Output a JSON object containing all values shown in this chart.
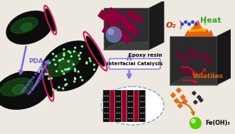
{
  "bg_color": "#ede8e0",
  "halloysite_dark": "#0d0d0d",
  "halloysite_green": "#1a5c1a",
  "halloysite_ring": "#dd1155",
  "pda_arrow": "#7766dd",
  "pda_label": "PDA",
  "fe_label_line1": "Ultrafine Fe(OH)₃",
  "fe_label_line2": "Nanoparticles",
  "cube_front": "#2e2e2e",
  "cube_top": "#3d3d3d",
  "cube_right": "#1a1a1a",
  "cube_rod": "#8b003b",
  "cube_sphere": "#6688bb",
  "epoxy_label": "Epoxy resin",
  "interfacial_label": "Interfacial Catalysis",
  "interfacial_box": "#8877ee",
  "arrow_color": "#8877ee",
  "o2_color": "#cc2200",
  "o2_label": "O₂",
  "heat_color": "#33aa33",
  "heat_label": "Heat",
  "volatiles_color": "#dd6600",
  "volatiles_label": "Volatiles",
  "fe_oh3_label": "Fe(OH)₃",
  "fe_oh3_green": "#55cc00",
  "fire_orange": "#e05500",
  "fire_yellow": "#ffaa00",
  "fire_red": "#cc0000",
  "dot_blue": "#3344cc",
  "scatter_orange": "#e06000",
  "scatter_dark": "#222222",
  "layer_black": "#111111",
  "layer_red": "#990022",
  "oval_edge": "#8899cc"
}
